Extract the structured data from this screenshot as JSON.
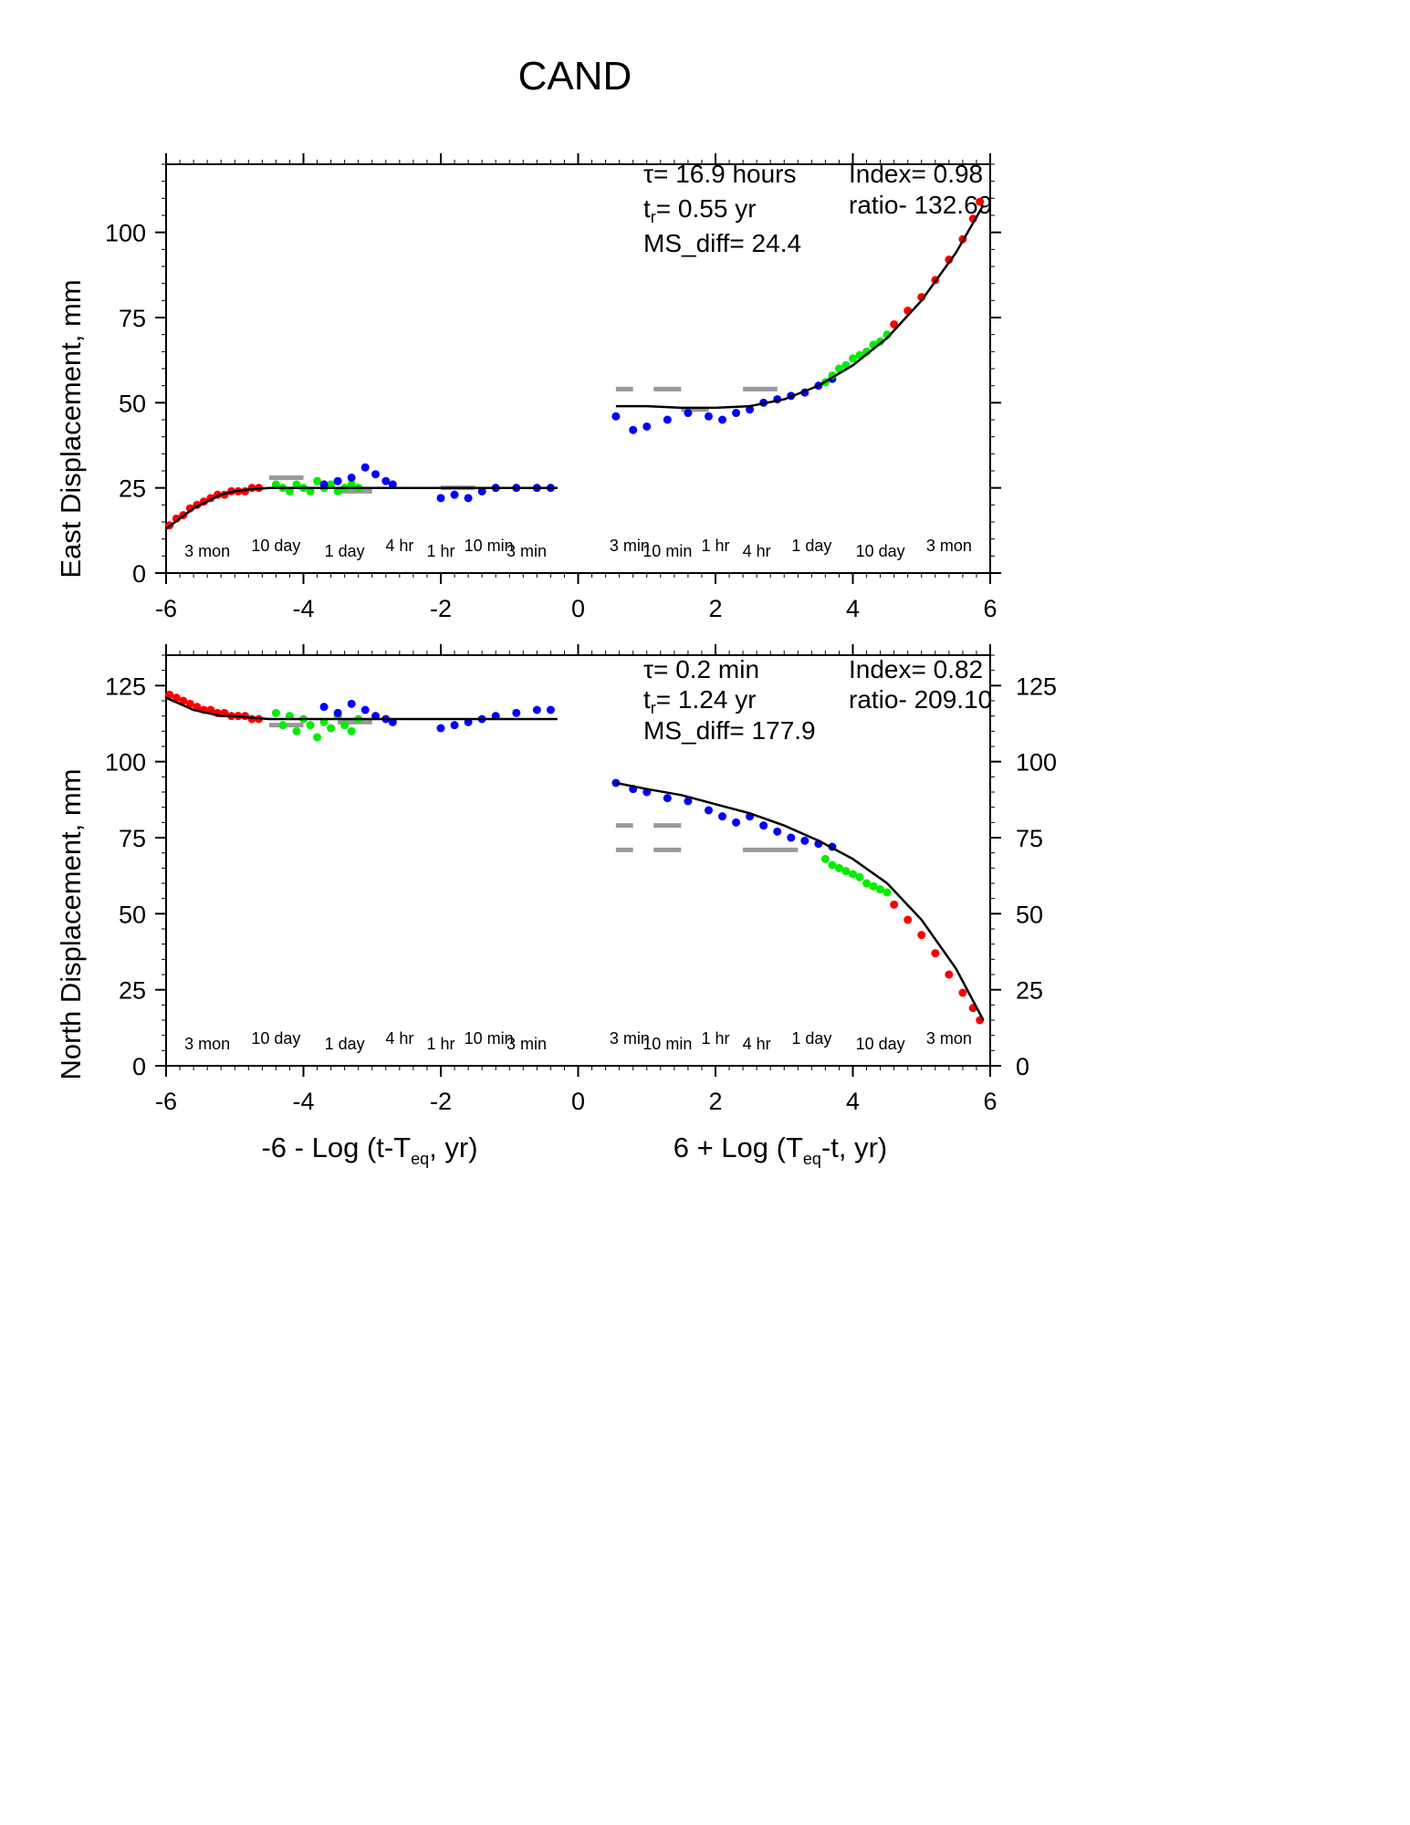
{
  "figure": {
    "title": "CAND"
  },
  "colors": {
    "early": "#ff0000",
    "mid": "#00ee00",
    "late": "#0000ff",
    "fit": "#000000",
    "model_dash": "#999999"
  },
  "chart_data": [
    {
      "type": "scatter",
      "panel": "east",
      "ylabel": "East Displacement, mm",
      "xlim": [
        -6,
        6
      ],
      "ylim": [
        0,
        120
      ],
      "yticks": [
        0,
        25,
        50,
        75,
        100
      ],
      "xticks": [
        -6,
        -4,
        -2,
        0,
        2,
        4,
        6
      ],
      "grid": false,
      "annotations": {
        "tau": "τ= 16.9 hours",
        "tr": "t",
        "tr_sub": "r",
        "tr_value": "= 0.55 yr",
        "ms_diff": "MS_diff= 24.4",
        "index": "Index= 0.98",
        "ratio": "ratio- 132.69"
      },
      "time_labels_left": [
        {
          "x": -5.4,
          "text": "3 mon"
        },
        {
          "x": -4.4,
          "text": "10 day"
        },
        {
          "x": -3.4,
          "text": "1 day"
        },
        {
          "x": -2.6,
          "text": "4 hr"
        },
        {
          "x": -2.0,
          "text": "1 hr"
        },
        {
          "x": -1.3,
          "text": "10 min"
        },
        {
          "x": -0.75,
          "text": "3 min"
        }
      ],
      "time_labels_right": [
        {
          "x": 0.75,
          "text": "3 min"
        },
        {
          "x": 1.3,
          "text": "10 min"
        },
        {
          "x": 2.0,
          "text": "1 hr"
        },
        {
          "x": 2.6,
          "text": "4 hr"
        },
        {
          "x": 3.4,
          "text": "1 day"
        },
        {
          "x": 4.4,
          "text": "10 day"
        },
        {
          "x": 5.4,
          "text": "3 mon"
        }
      ],
      "series": [
        {
          "color": "#ff0000",
          "segment": "left",
          "x": [
            -5.95,
            -5.85,
            -5.75,
            -5.65,
            -5.55,
            -5.45,
            -5.35,
            -5.25,
            -5.15,
            -5.05,
            -4.95,
            -4.85,
            -4.75,
            -4.65
          ],
          "y": [
            14,
            16,
            17,
            19,
            20,
            21,
            22,
            23,
            23,
            24,
            24,
            24,
            25,
            25
          ]
        },
        {
          "color": "#00ee00",
          "segment": "left",
          "x": [
            -4.4,
            -4.3,
            -4.2,
            -4.1,
            -4.0,
            -3.9,
            -3.8,
            -3.7,
            -3.6,
            -3.5,
            -3.4,
            -3.3,
            -3.2
          ],
          "y": [
            26,
            25,
            24,
            26,
            25,
            24,
            27,
            25,
            26,
            24,
            25,
            26,
            25
          ]
        },
        {
          "color": "#0000ff",
          "segment": "left",
          "x": [
            -3.7,
            -3.5,
            -3.3,
            -3.1,
            -2.95,
            -2.8,
            -2.7,
            -2.0,
            -1.8,
            -1.6,
            -1.4,
            -1.2,
            -0.9,
            -0.6,
            -0.4
          ],
          "y": [
            26,
            27,
            28,
            31,
            29,
            27,
            26,
            22,
            23,
            22,
            24,
            25,
            25,
            25,
            25
          ]
        },
        {
          "color": "#0000ff",
          "segment": "right",
          "x": [
            0.55,
            0.8,
            1.0,
            1.3,
            1.6,
            1.9,
            2.1,
            2.3,
            2.5,
            2.7,
            2.9,
            3.1,
            3.3,
            3.5,
            3.7
          ],
          "y": [
            46,
            42,
            43,
            45,
            47,
            46,
            45,
            47,
            48,
            50,
            51,
            52,
            53,
            55,
            57
          ]
        },
        {
          "color": "#00ee00",
          "segment": "right",
          "x": [
            3.6,
            3.7,
            3.8,
            3.9,
            4.0,
            4.1,
            4.2,
            4.3,
            4.4,
            4.5
          ],
          "y": [
            56,
            58,
            60,
            61,
            63,
            64,
            65,
            67,
            68,
            70
          ]
        },
        {
          "color": "#ff0000",
          "segment": "right",
          "x": [
            4.6,
            4.8,
            5.0,
            5.2,
            5.4,
            5.6,
            5.75,
            5.85
          ],
          "y": [
            73,
            77,
            81,
            86,
            92,
            98,
            104,
            109
          ]
        }
      ],
      "fit": {
        "left": {
          "x": [
            -6.0,
            -5.8,
            -5.6,
            -5.4,
            -5.2,
            -5.0,
            -4.8,
            -4.5,
            -4.0,
            -3.5,
            -3.0,
            -2.5,
            -2.0,
            -1.5,
            -1.0,
            -0.3
          ],
          "y": [
            13,
            16,
            19,
            21,
            23,
            24,
            24.5,
            25,
            25,
            25,
            25,
            25,
            25,
            25,
            25,
            25
          ]
        },
        "right": {
          "x": [
            0.55,
            1.0,
            1.5,
            2.0,
            2.5,
            3.0,
            3.5,
            4.0,
            4.5,
            5.0,
            5.5,
            5.9
          ],
          "y": [
            49,
            49,
            48.5,
            48.5,
            49,
            51,
            55,
            61,
            69,
            80,
            94,
            108
          ]
        }
      },
      "model_steps": [
        {
          "x": [
            0.55,
            0.8
          ],
          "y": 54
        },
        {
          "x": [
            1.1,
            1.5
          ],
          "y": 54
        },
        {
          "x": [
            1.5,
            1.9
          ],
          "y": 48
        },
        {
          "x": [
            2.4,
            2.9
          ],
          "y": 54
        },
        {
          "x": [
            -4.5,
            -4.0
          ],
          "y": 28
        },
        {
          "x": [
            -3.5,
            -3.0
          ],
          "y": 24
        },
        {
          "x": [
            -2.0,
            -1.5
          ],
          "y": 25
        }
      ]
    },
    {
      "type": "scatter",
      "panel": "north",
      "ylabel": "North Displacement, mm",
      "xlim": [
        -6,
        6
      ],
      "ylim": [
        0,
        135
      ],
      "yticks": [
        0,
        25,
        50,
        75,
        100,
        125
      ],
      "xticks": [
        -6,
        -4,
        -2,
        0,
        2,
        4,
        6
      ],
      "grid": false,
      "xlabel_left": "-6 - Log (t-T",
      "xlabel_left_sub": "eq",
      "xlabel_left_end": ", yr)",
      "xlabel_right": "6 + Log (T",
      "xlabel_right_sub": "eq",
      "xlabel_right_end": "-t, yr)",
      "annotations": {
        "tau": "τ= 0.2 min",
        "tr": "t",
        "tr_sub": "r",
        "tr_value": "= 1.24 yr",
        "ms_diff": "MS_diff= 177.9",
        "index": "Index= 0.82",
        "ratio": "ratio- 209.10"
      },
      "time_labels_left": [
        {
          "x": -5.4,
          "text": "3 mon"
        },
        {
          "x": -4.4,
          "text": "10 day"
        },
        {
          "x": -3.4,
          "text": "1 day"
        },
        {
          "x": -2.6,
          "text": "4 hr"
        },
        {
          "x": -2.0,
          "text": "1 hr"
        },
        {
          "x": -1.3,
          "text": "10 min"
        },
        {
          "x": -0.75,
          "text": "3 min"
        }
      ],
      "time_labels_right": [
        {
          "x": 0.75,
          "text": "3 min"
        },
        {
          "x": 1.3,
          "text": "10 min"
        },
        {
          "x": 2.0,
          "text": "1 hr"
        },
        {
          "x": 2.6,
          "text": "4 hr"
        },
        {
          "x": 3.4,
          "text": "1 day"
        },
        {
          "x": 4.4,
          "text": "10 day"
        },
        {
          "x": 5.4,
          "text": "3 mon"
        }
      ],
      "series": [
        {
          "color": "#ff0000",
          "segment": "left",
          "x": [
            -5.95,
            -5.85,
            -5.75,
            -5.65,
            -5.55,
            -5.45,
            -5.35,
            -5.25,
            -5.15,
            -5.05,
            -4.95,
            -4.85,
            -4.75,
            -4.65
          ],
          "y": [
            122,
            121,
            120,
            119,
            118,
            117,
            117,
            116,
            116,
            115,
            115,
            115,
            114,
            114
          ]
        },
        {
          "color": "#00ee00",
          "segment": "left",
          "x": [
            -4.4,
            -4.3,
            -4.2,
            -4.1,
            -4.0,
            -3.9,
            -3.8,
            -3.7,
            -3.6,
            -3.5,
            -3.4,
            -3.3,
            -3.2
          ],
          "y": [
            116,
            112,
            115,
            110,
            114,
            112,
            108,
            113,
            111,
            115,
            112,
            110,
            114
          ]
        },
        {
          "color": "#0000ff",
          "segment": "left",
          "x": [
            -3.7,
            -3.5,
            -3.3,
            -3.1,
            -2.95,
            -2.8,
            -2.7,
            -2.0,
            -1.8,
            -1.6,
            -1.4,
            -1.2,
            -0.9,
            -0.6,
            -0.4
          ],
          "y": [
            118,
            116,
            119,
            117,
            115,
            114,
            113,
            111,
            112,
            113,
            114,
            115,
            116,
            117,
            117
          ]
        },
        {
          "color": "#0000ff",
          "segment": "right",
          "x": [
            0.55,
            0.8,
            1.0,
            1.3,
            1.6,
            1.9,
            2.1,
            2.3,
            2.5,
            2.7,
            2.9,
            3.1,
            3.3,
            3.5,
            3.7
          ],
          "y": [
            93,
            91,
            90,
            88,
            87,
            84,
            82,
            80,
            82,
            79,
            77,
            75,
            74,
            73,
            72
          ]
        },
        {
          "color": "#00ee00",
          "segment": "right",
          "x": [
            3.6,
            3.7,
            3.8,
            3.9,
            4.0,
            4.1,
            4.2,
            4.3,
            4.4,
            4.5
          ],
          "y": [
            68,
            66,
            65,
            64,
            63,
            62,
            60,
            59,
            58,
            57
          ]
        },
        {
          "color": "#ff0000",
          "segment": "right",
          "x": [
            4.6,
            4.8,
            5.0,
            5.2,
            5.4,
            5.6,
            5.75,
            5.85
          ],
          "y": [
            53,
            48,
            43,
            37,
            30,
            24,
            19,
            15
          ]
        }
      ],
      "fit": {
        "left": {
          "x": [
            -6.0,
            -5.8,
            -5.6,
            -5.4,
            -5.2,
            -5.0,
            -4.8,
            -4.5,
            -4.0,
            -3.5,
            -3.0,
            -2.5,
            -2.0,
            -1.5,
            -1.0,
            -0.3
          ],
          "y": [
            121,
            119,
            117,
            116,
            115,
            115,
            114.5,
            114,
            114,
            114,
            114,
            114,
            114,
            114,
            114,
            114
          ]
        },
        "right": {
          "x": [
            0.55,
            1.0,
            1.5,
            2.0,
            2.5,
            3.0,
            3.5,
            4.0,
            4.5,
            5.0,
            5.5,
            5.9
          ],
          "y": [
            93,
            91,
            89,
            86,
            83,
            79,
            74,
            68,
            60,
            48,
            32,
            15
          ]
        }
      },
      "model_steps": [
        {
          "x": [
            0.55,
            0.8
          ],
          "y": 79
        },
        {
          "x": [
            1.1,
            1.5
          ],
          "y": 79
        },
        {
          "x": [
            0.55,
            0.8
          ],
          "y": 71
        },
        {
          "x": [
            1.1,
            1.5
          ],
          "y": 71
        },
        {
          "x": [
            2.4,
            3.2
          ],
          "y": 71
        },
        {
          "x": [
            -4.5,
            -4.0
          ],
          "y": 112
        },
        {
          "x": [
            -3.5,
            -3.0
          ],
          "y": 113
        }
      ]
    }
  ]
}
